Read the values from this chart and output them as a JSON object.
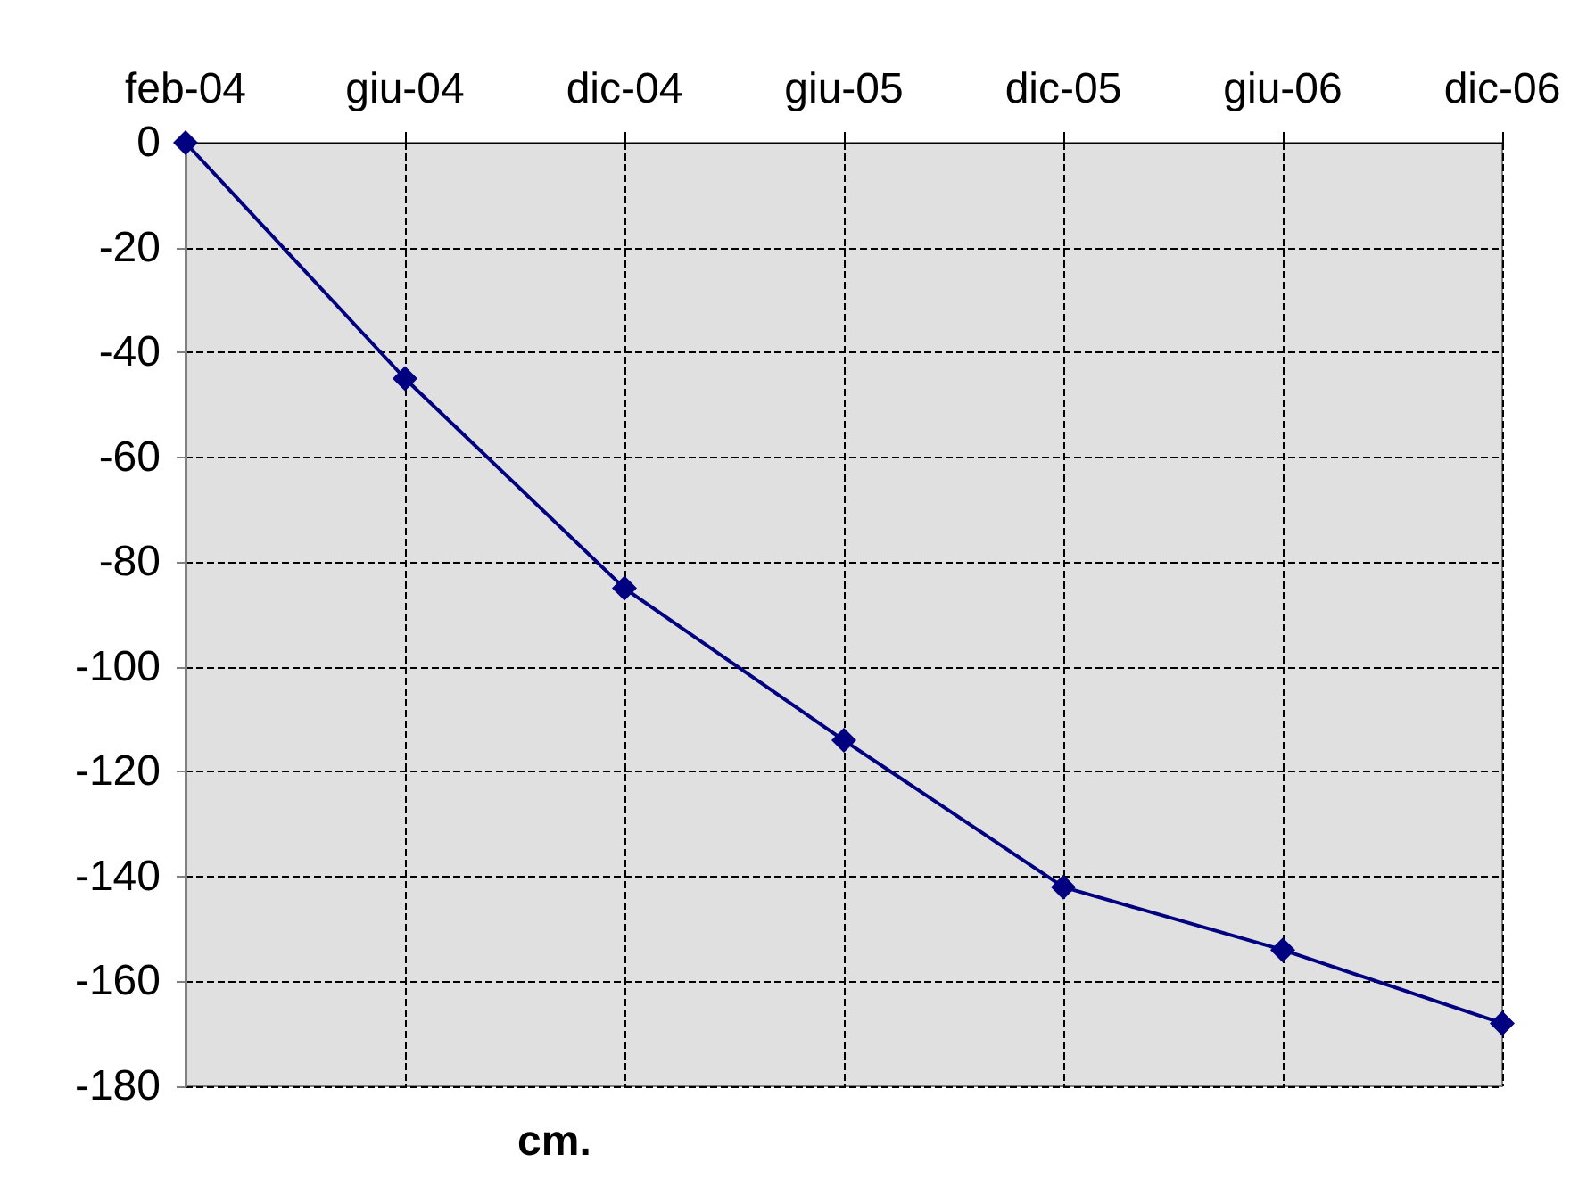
{
  "chart_data": {
    "type": "line",
    "xlabel": "cm.",
    "categories": [
      "feb-04",
      "giu-04",
      "dic-04",
      "giu-05",
      "dic-05",
      "giu-06",
      "dic-06"
    ],
    "series": [
      {
        "color": "#000080",
        "values": [
          0,
          -45,
          -85,
          -114,
          -142,
          -154,
          -168
        ]
      }
    ],
    "ylim": [
      -180,
      0
    ],
    "yticks": [
      -180,
      -160,
      -140,
      -120,
      -100,
      -80,
      -60,
      -40,
      -20,
      0
    ],
    "grid": true,
    "marker": "diamond",
    "line_style": "solid"
  }
}
